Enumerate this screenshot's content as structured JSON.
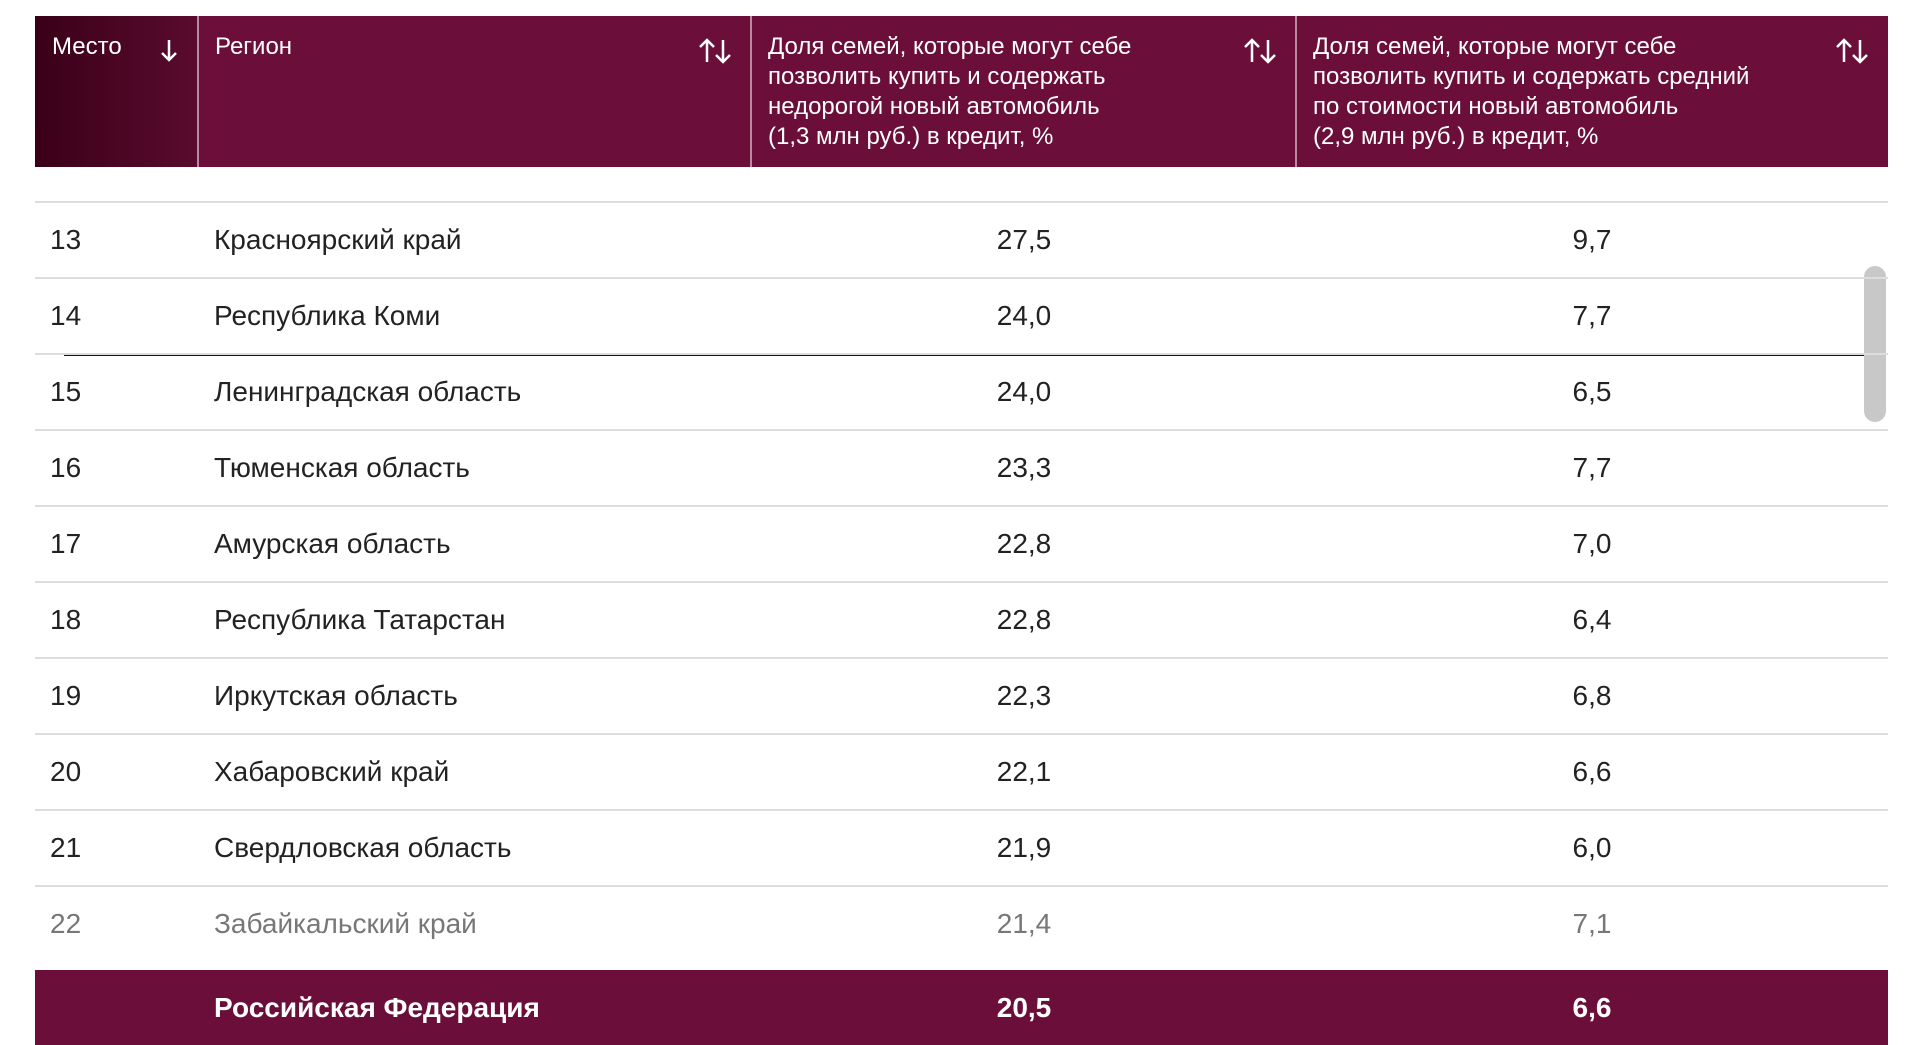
{
  "table": {
    "headers": [
      {
        "lines": [
          "Место"
        ]
      },
      {
        "lines": [
          "Регион"
        ]
      },
      {
        "lines": [
          "Доля семей, которые могут себе",
          "позволить купить и содержать",
          "недорогой новый автомобиль",
          "(1,3 млн руб.) в кредит, %"
        ]
      },
      {
        "lines": [
          "Доля семей, которые могут себе",
          "позволить купить и содержать средний",
          "по стоимости новый автомобиль",
          "(2,9 млн руб.) в кредит, %"
        ]
      }
    ],
    "rows": [
      [
        "13",
        "Красноярский край",
        "27,5",
        "9,7"
      ],
      [
        "14",
        "Республика Коми",
        "24,0",
        "7,7"
      ],
      [
        "15",
        "Ленинградская область",
        "24,0",
        "6,5"
      ],
      [
        "16",
        "Тюменская область",
        "23,3",
        "7,7"
      ],
      [
        "17",
        "Амурская область",
        "22,8",
        "7,0"
      ],
      [
        "18",
        "Республика Татарстан",
        "22,8",
        "6,4"
      ],
      [
        "19",
        "Иркутская область",
        "22,3",
        "6,8"
      ],
      [
        "20",
        "Хабаровский край",
        "22,1",
        "6,6"
      ],
      [
        "21",
        "Свердловская область",
        "21,9",
        "6,0"
      ],
      [
        "22",
        "Забайкальский край",
        "21,4",
        "7,1"
      ]
    ],
    "footer": [
      "Российская Федерация",
      "20,5",
      "6,6"
    ]
  }
}
